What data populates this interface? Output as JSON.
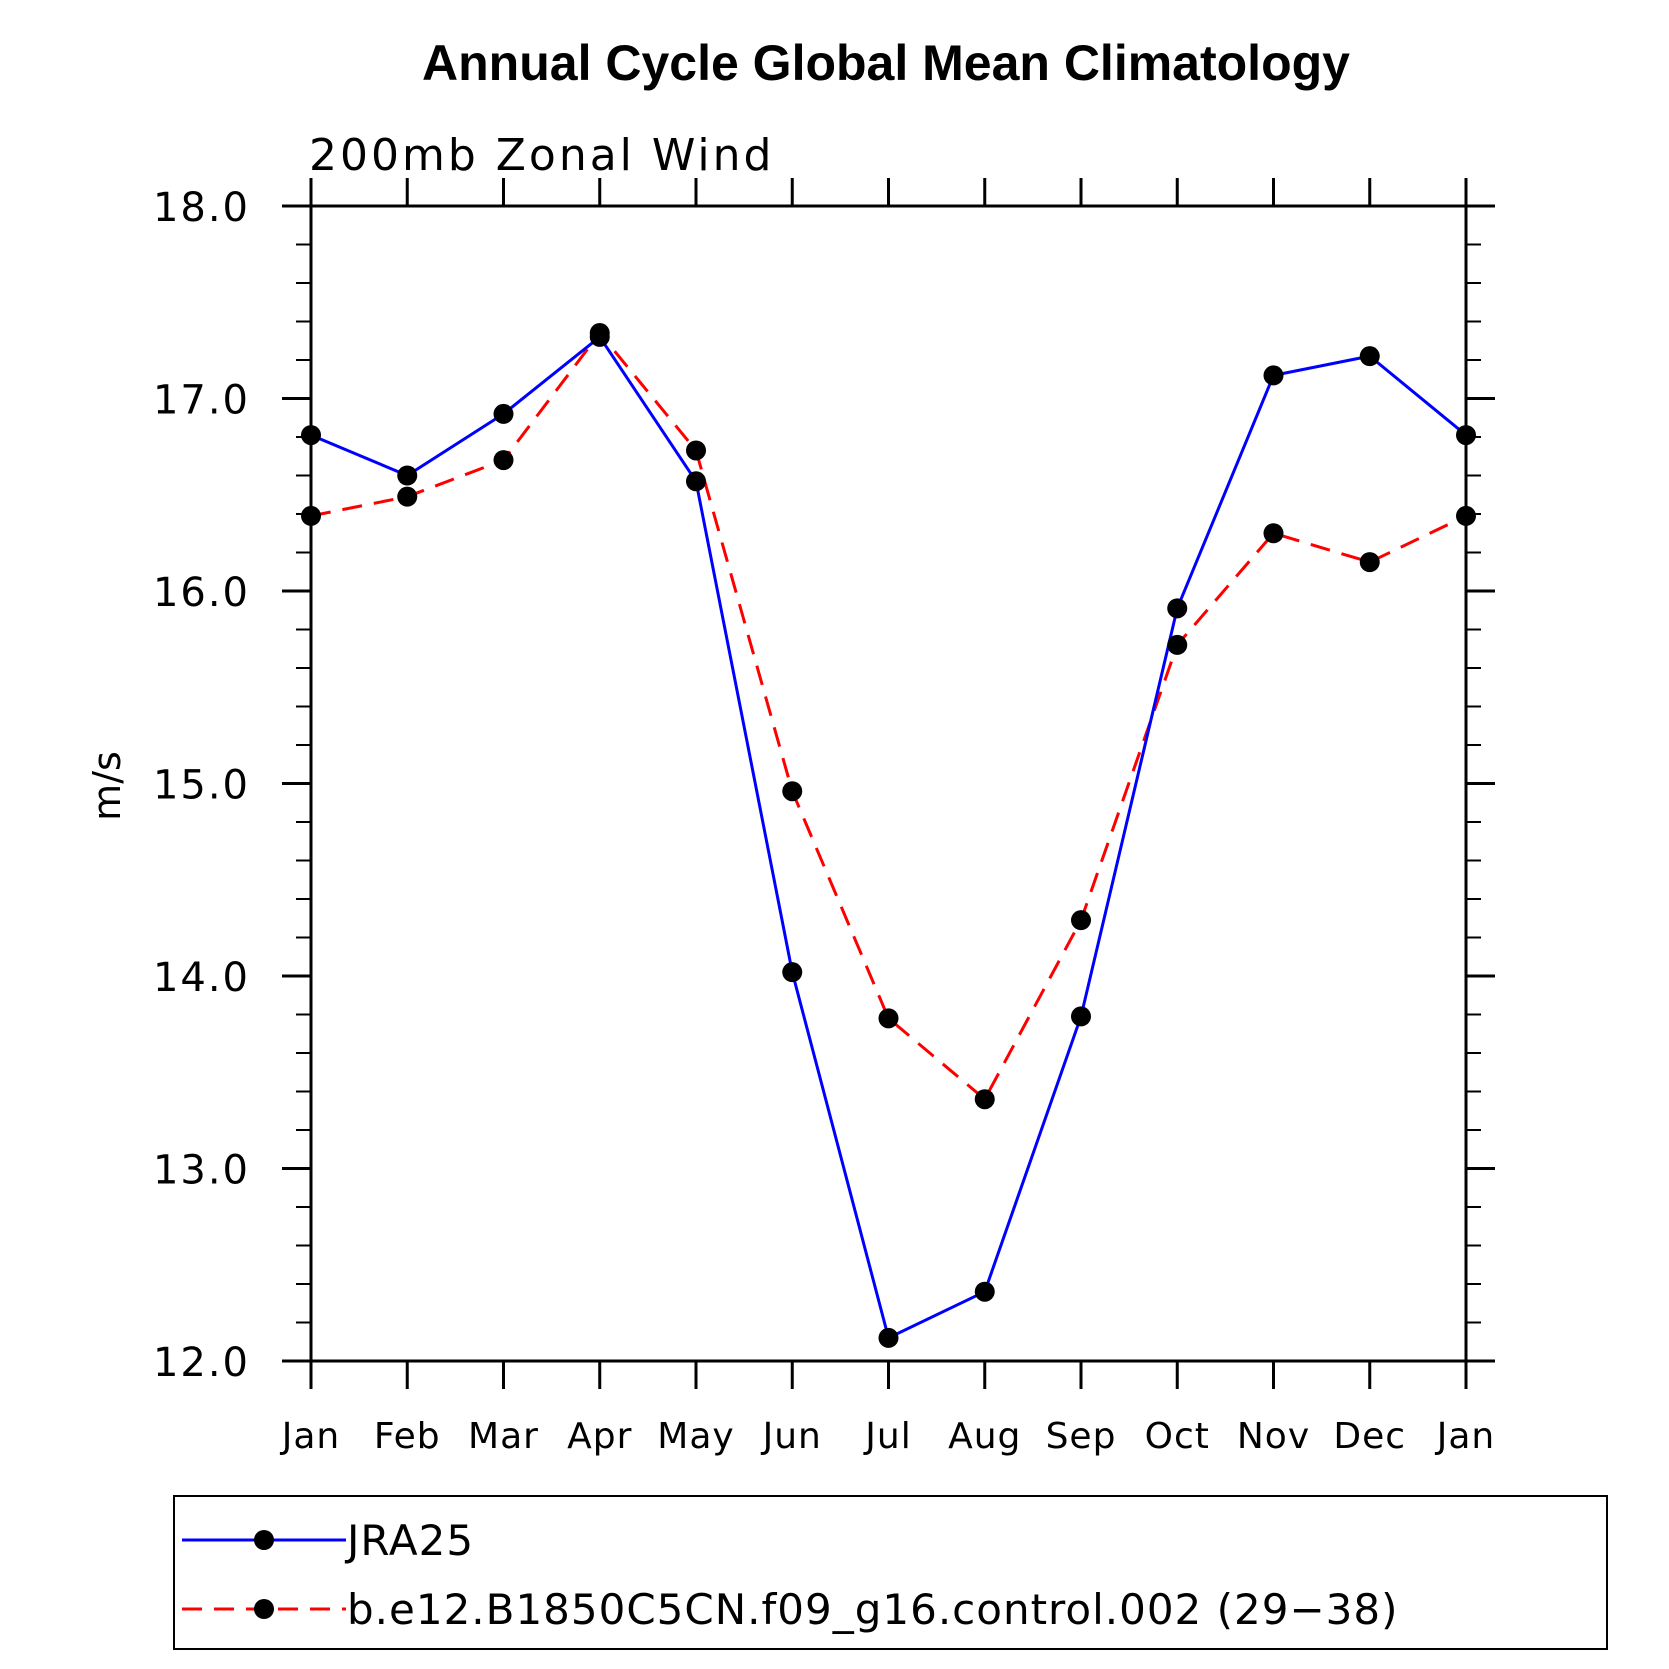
{
  "chart_data": {
    "type": "line",
    "title": "Annual Cycle Global Mean Climatology",
    "subtitle": "200mb Zonal Wind",
    "ylabel": "m/s",
    "xlabel": "",
    "categories": [
      "Jan",
      "Feb",
      "Mar",
      "Apr",
      "May",
      "Jun",
      "Jul",
      "Aug",
      "Sep",
      "Oct",
      "Nov",
      "Dec",
      "Jan"
    ],
    "yticks": [
      "12.0",
      "13.0",
      "14.0",
      "15.0",
      "16.0",
      "17.0",
      "18.0"
    ],
    "ylim": [
      12.0,
      18.0
    ],
    "grid": false,
    "legend_position": "bottom",
    "series": [
      {
        "name": "JRA25",
        "color": "#0000ff",
        "line_style": "solid",
        "values": [
          16.81,
          16.6,
          16.92,
          17.32,
          16.57,
          14.02,
          12.12,
          12.36,
          13.79,
          15.91,
          17.12,
          17.22,
          16.81
        ]
      },
      {
        "name": "b.e12.B1850C5CN.f09_g16.control.002 (29−38)",
        "color": "#ff0000",
        "line_style": "dashed",
        "values": [
          16.39,
          16.49,
          16.68,
          17.34,
          16.73,
          14.96,
          13.78,
          13.36,
          14.29,
          15.72,
          16.3,
          16.15,
          16.39
        ]
      }
    ]
  }
}
